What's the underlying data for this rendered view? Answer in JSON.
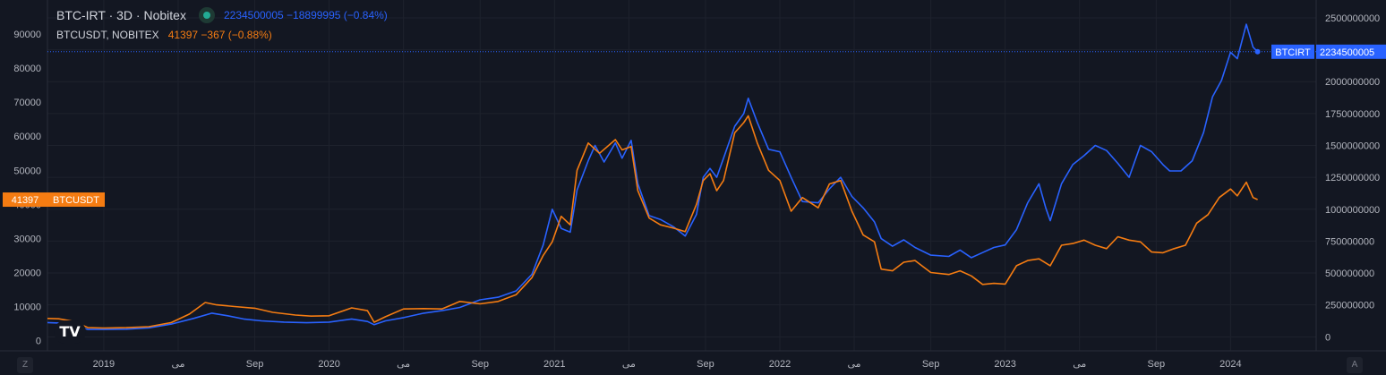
{
  "legend": {
    "main_symbol": "BTC-IRT · 3D · Nobitex",
    "main_values": "2234500005  −18899995 (−0.84%)",
    "secondary_symbol": "BTCUSDT, NOBITEX",
    "secondary_values": "41397  −367 (−0.88%)"
  },
  "axis_buttons": {
    "left": "Z",
    "right": "A"
  },
  "logo": "TV",
  "colors": {
    "background": "#131722",
    "grid": "#1e222d",
    "irt": "#2962ff",
    "usdt": "#f57c12",
    "tick": "#b2b5be"
  },
  "chart_data": {
    "type": "line",
    "left_axis": {
      "ticks": [
        0,
        10000,
        20000,
        30000,
        40000,
        50000,
        60000,
        70000,
        80000,
        90000,
        100000
      ],
      "range": [
        -3000,
        100000
      ]
    },
    "right_axis": {
      "ticks": [
        0,
        250000000,
        500000000,
        750000000,
        1000000000,
        1250000000,
        1500000000,
        1750000000,
        2000000000,
        2250000000,
        2500000000
      ],
      "tick_labels": [
        "0",
        "250000000",
        "500000000",
        "750000000",
        "1000000000",
        "1250000000",
        "1500000000",
        "1750000000",
        "2000000000",
        "2250000000",
        "2500000000"
      ],
      "range": [
        -110000000,
        2640000000
      ]
    },
    "x_labels": [
      "2019",
      "می",
      "Sep",
      "2020",
      "می",
      "Sep",
      "2021",
      "می",
      "Sep",
      "2022",
      "می",
      "Sep",
      "2023",
      "می",
      "Sep",
      "2024"
    ],
    "x_label_positions": [
      2019.0,
      2019.33,
      2019.67,
      2020.0,
      2020.33,
      2020.67,
      2021.0,
      2021.33,
      2021.67,
      2022.0,
      2022.33,
      2022.67,
      2023.0,
      2023.33,
      2023.67,
      2024.0
    ],
    "x_range": [
      2018.75,
      2024.38
    ],
    "grid": true,
    "series": [
      {
        "name": "BTCIRT",
        "axis": "right",
        "last_label": "2234500005",
        "points": [
          [
            2018.75,
            112000000
          ],
          [
            2018.8,
            108000000
          ],
          [
            2018.87,
            90000000
          ],
          [
            2018.93,
            58000000
          ],
          [
            2019.0,
            58000000
          ],
          [
            2019.1,
            60000000
          ],
          [
            2019.2,
            70000000
          ],
          [
            2019.3,
            100000000
          ],
          [
            2019.4,
            145000000
          ],
          [
            2019.48,
            185000000
          ],
          [
            2019.55,
            165000000
          ],
          [
            2019.62,
            140000000
          ],
          [
            2019.7,
            125000000
          ],
          [
            2019.8,
            115000000
          ],
          [
            2019.9,
            110000000
          ],
          [
            2020.0,
            115000000
          ],
          [
            2020.1,
            140000000
          ],
          [
            2020.17,
            120000000
          ],
          [
            2020.2,
            95000000
          ],
          [
            2020.25,
            125000000
          ],
          [
            2020.33,
            150000000
          ],
          [
            2020.42,
            185000000
          ],
          [
            2020.5,
            205000000
          ],
          [
            2020.58,
            230000000
          ],
          [
            2020.67,
            290000000
          ],
          [
            2020.75,
            310000000
          ],
          [
            2020.83,
            360000000
          ],
          [
            2020.9,
            490000000
          ],
          [
            2020.95,
            720000000
          ],
          [
            2020.99,
            1000000000
          ],
          [
            2021.03,
            850000000
          ],
          [
            2021.07,
            820000000
          ],
          [
            2021.1,
            1150000000
          ],
          [
            2021.15,
            1380000000
          ],
          [
            2021.18,
            1500000000
          ],
          [
            2021.22,
            1370000000
          ],
          [
            2021.27,
            1520000000
          ],
          [
            2021.3,
            1400000000
          ],
          [
            2021.34,
            1540000000
          ],
          [
            2021.37,
            1200000000
          ],
          [
            2021.42,
            950000000
          ],
          [
            2021.47,
            920000000
          ],
          [
            2021.53,
            860000000
          ],
          [
            2021.58,
            790000000
          ],
          [
            2021.63,
            960000000
          ],
          [
            2021.66,
            1250000000
          ],
          [
            2021.69,
            1320000000
          ],
          [
            2021.72,
            1250000000
          ],
          [
            2021.75,
            1400000000
          ],
          [
            2021.8,
            1650000000
          ],
          [
            2021.84,
            1750000000
          ],
          [
            2021.86,
            1870000000
          ],
          [
            2021.9,
            1680000000
          ],
          [
            2021.95,
            1470000000
          ],
          [
            2022.0,
            1450000000
          ],
          [
            2022.05,
            1250000000
          ],
          [
            2022.1,
            1060000000
          ],
          [
            2022.17,
            1050000000
          ],
          [
            2022.22,
            1160000000
          ],
          [
            2022.27,
            1250000000
          ],
          [
            2022.32,
            1100000000
          ],
          [
            2022.37,
            1010000000
          ],
          [
            2022.42,
            900000000
          ],
          [
            2022.45,
            770000000
          ],
          [
            2022.5,
            710000000
          ],
          [
            2022.55,
            760000000
          ],
          [
            2022.6,
            700000000
          ],
          [
            2022.67,
            640000000
          ],
          [
            2022.75,
            630000000
          ],
          [
            2022.8,
            680000000
          ],
          [
            2022.85,
            620000000
          ],
          [
            2022.9,
            660000000
          ],
          [
            2022.95,
            700000000
          ],
          [
            2023.0,
            720000000
          ],
          [
            2023.05,
            840000000
          ],
          [
            2023.1,
            1050000000
          ],
          [
            2023.15,
            1200000000
          ],
          [
            2023.18,
            1010000000
          ],
          [
            2023.2,
            910000000
          ],
          [
            2023.25,
            1200000000
          ],
          [
            2023.3,
            1350000000
          ],
          [
            2023.35,
            1420000000
          ],
          [
            2023.4,
            1500000000
          ],
          [
            2023.45,
            1460000000
          ],
          [
            2023.5,
            1360000000
          ],
          [
            2023.55,
            1250000000
          ],
          [
            2023.6,
            1500000000
          ],
          [
            2023.65,
            1450000000
          ],
          [
            2023.7,
            1350000000
          ],
          [
            2023.73,
            1300000000
          ],
          [
            2023.78,
            1300000000
          ],
          [
            2023.83,
            1380000000
          ],
          [
            2023.88,
            1600000000
          ],
          [
            2023.92,
            1880000000
          ],
          [
            2023.96,
            2010000000
          ],
          [
            2024.0,
            2230000000
          ],
          [
            2024.03,
            2180000000
          ],
          [
            2024.07,
            2450000000
          ],
          [
            2024.1,
            2270000000
          ],
          [
            2024.12,
            2234500005
          ]
        ]
      },
      {
        "name": "BTCUSDT",
        "axis": "left",
        "last_label": "41397",
        "points": [
          [
            2018.75,
            6500
          ],
          [
            2018.8,
            6400
          ],
          [
            2018.87,
            5600
          ],
          [
            2018.93,
            3800
          ],
          [
            2019.0,
            3700
          ],
          [
            2019.1,
            3800
          ],
          [
            2019.2,
            4100
          ],
          [
            2019.3,
            5300
          ],
          [
            2019.38,
            7800
          ],
          [
            2019.45,
            11200
          ],
          [
            2019.5,
            10500
          ],
          [
            2019.58,
            10000
          ],
          [
            2019.67,
            9500
          ],
          [
            2019.75,
            8300
          ],
          [
            2019.85,
            7500
          ],
          [
            2019.92,
            7200
          ],
          [
            2020.0,
            7300
          ],
          [
            2020.1,
            9600
          ],
          [
            2020.17,
            8800
          ],
          [
            2020.2,
            5400
          ],
          [
            2020.25,
            7000
          ],
          [
            2020.33,
            9300
          ],
          [
            2020.42,
            9400
          ],
          [
            2020.5,
            9300
          ],
          [
            2020.58,
            11500
          ],
          [
            2020.67,
            10800
          ],
          [
            2020.75,
            11500
          ],
          [
            2020.83,
            13500
          ],
          [
            2020.9,
            18500
          ],
          [
            2020.95,
            25000
          ],
          [
            2020.99,
            29000
          ],
          [
            2021.03,
            36500
          ],
          [
            2021.07,
            34000
          ],
          [
            2021.1,
            50000
          ],
          [
            2021.15,
            58000
          ],
          [
            2021.2,
            55000
          ],
          [
            2021.27,
            59000
          ],
          [
            2021.3,
            56000
          ],
          [
            2021.34,
            57000
          ],
          [
            2021.37,
            44000
          ],
          [
            2021.42,
            36000
          ],
          [
            2021.47,
            34000
          ],
          [
            2021.53,
            33000
          ],
          [
            2021.58,
            32000
          ],
          [
            2021.63,
            40000
          ],
          [
            2021.66,
            47000
          ],
          [
            2021.69,
            49000
          ],
          [
            2021.72,
            44000
          ],
          [
            2021.75,
            47000
          ],
          [
            2021.8,
            61000
          ],
          [
            2021.84,
            64000
          ],
          [
            2021.86,
            66000
          ],
          [
            2021.9,
            58000
          ],
          [
            2021.95,
            50000
          ],
          [
            2022.0,
            47000
          ],
          [
            2022.05,
            38000
          ],
          [
            2022.1,
            42000
          ],
          [
            2022.17,
            39000
          ],
          [
            2022.22,
            46000
          ],
          [
            2022.27,
            47000
          ],
          [
            2022.32,
            38000
          ],
          [
            2022.37,
            31000
          ],
          [
            2022.42,
            29000
          ],
          [
            2022.45,
            21000
          ],
          [
            2022.5,
            20500
          ],
          [
            2022.55,
            23000
          ],
          [
            2022.6,
            23500
          ],
          [
            2022.67,
            20000
          ],
          [
            2022.75,
            19400
          ],
          [
            2022.8,
            20500
          ],
          [
            2022.85,
            19000
          ],
          [
            2022.9,
            16500
          ],
          [
            2022.95,
            16800
          ],
          [
            2023.0,
            16600
          ],
          [
            2023.05,
            22000
          ],
          [
            2023.1,
            23500
          ],
          [
            2023.15,
            24000
          ],
          [
            2023.2,
            22000
          ],
          [
            2023.25,
            28000
          ],
          [
            2023.3,
            28500
          ],
          [
            2023.35,
            29500
          ],
          [
            2023.4,
            28000
          ],
          [
            2023.45,
            27000
          ],
          [
            2023.5,
            30500
          ],
          [
            2023.55,
            29500
          ],
          [
            2023.6,
            29000
          ],
          [
            2023.65,
            26000
          ],
          [
            2023.7,
            25800
          ],
          [
            2023.75,
            27000
          ],
          [
            2023.8,
            28000
          ],
          [
            2023.85,
            34500
          ],
          [
            2023.9,
            37000
          ],
          [
            2023.95,
            42000
          ],
          [
            2024.0,
            44500
          ],
          [
            2024.03,
            42500
          ],
          [
            2024.07,
            46500
          ],
          [
            2024.1,
            42000
          ],
          [
            2024.12,
            41397
          ]
        ]
      }
    ]
  }
}
